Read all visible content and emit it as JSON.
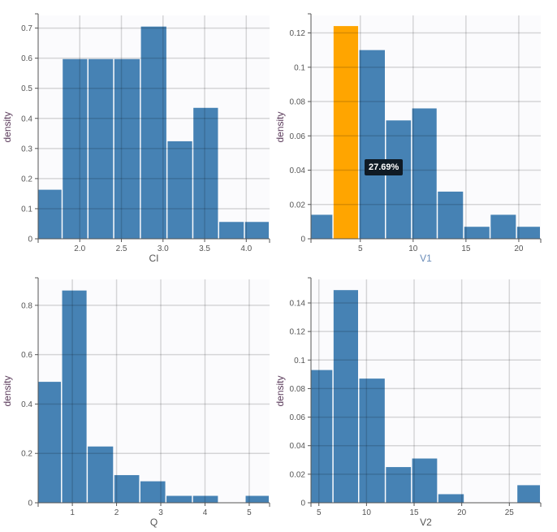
{
  "chart_data": [
    {
      "type": "bar",
      "subtype": "histogram",
      "xlabel": "CI",
      "ylabel": "density",
      "xlim": [
        1.5,
        4.28
      ],
      "ylim": [
        0,
        0.742
      ],
      "xticks": [
        2.0,
        2.5,
        3.0,
        3.5,
        4.0
      ],
      "xtick_labels": [
        "2.0",
        "2.5",
        "3.0",
        "3.5",
        "4.0"
      ],
      "yticks": [
        0,
        0.1,
        0.2,
        0.3,
        0.4,
        0.5,
        0.6,
        0.7
      ],
      "ytick_labels": [
        "0",
        "0.1",
        "0.2",
        "0.3",
        "0.4",
        "0.5",
        "0.6",
        "0.7"
      ],
      "bin_edges": [
        1.5,
        1.79,
        2.1,
        2.41,
        2.73,
        3.05,
        3.36,
        3.67,
        3.98,
        4.28
      ],
      "values": [
        0.163,
        0.597,
        0.597,
        0.597,
        0.705,
        0.324,
        0.435,
        0.056,
        0.056
      ],
      "grid": true
    },
    {
      "type": "bar",
      "subtype": "histogram",
      "xlabel": "V1",
      "ylabel": "density",
      "xlim": [
        0.33,
        22.08
      ],
      "ylim": [
        0,
        0.1302
      ],
      "xticks": [
        5,
        10,
        15,
        20
      ],
      "xtick_labels": [
        "5",
        "10",
        "15",
        "20"
      ],
      "yticks": [
        0,
        0.02,
        0.04,
        0.06,
        0.08,
        0.1,
        0.12
      ],
      "ytick_labels": [
        "0",
        "0.02",
        "0.04",
        "0.06",
        "0.08",
        "0.1",
        "0.12"
      ],
      "bin_edges": [
        0.33,
        2.43,
        4.87,
        7.4,
        9.87,
        12.3,
        14.8,
        17.3,
        19.8,
        22.08
      ],
      "values": [
        0.014,
        0.124,
        0.11,
        0.069,
        0.076,
        0.0275,
        0.007,
        0.014,
        0.007
      ],
      "highlighted_bin": 1,
      "highlight_color": "#ffa500",
      "tooltip": "27.69%",
      "grid": true
    },
    {
      "type": "bar",
      "subtype": "histogram",
      "xlabel": "Q",
      "ylabel": "density",
      "xlim": [
        0.227,
        5.46
      ],
      "ylim": [
        0,
        0.905
      ],
      "xticks": [
        1,
        2,
        3,
        4,
        5
      ],
      "xtick_labels": [
        "1",
        "2",
        "3",
        "4",
        "5"
      ],
      "yticks": [
        0,
        0.2,
        0.4,
        0.6,
        0.8
      ],
      "ytick_labels": [
        "0",
        "0.2",
        "0.4",
        "0.6",
        "0.8"
      ],
      "bin_edges": [
        0.227,
        0.76,
        1.34,
        1.94,
        2.53,
        3.12,
        3.72,
        4.31,
        4.91,
        5.46
      ],
      "values": [
        0.49,
        0.86,
        0.228,
        0.112,
        0.087,
        0.028,
        0.028,
        0,
        0.028
      ],
      "grid": true
    },
    {
      "type": "bar",
      "subtype": "histogram",
      "xlabel": "V2",
      "ylabel": "density",
      "xlim": [
        4.17,
        28.3
      ],
      "ylim": [
        0,
        0.1565
      ],
      "xticks": [
        5,
        10,
        15,
        20,
        25
      ],
      "xtick_labels": [
        "5",
        "10",
        "15",
        "20",
        "25"
      ],
      "yticks": [
        0,
        0.02,
        0.04,
        0.06,
        0.08,
        0.1,
        0.12,
        0.14
      ],
      "ytick_labels": [
        "0",
        "0.02",
        "0.04",
        "0.06",
        "0.08",
        "0.1",
        "0.12",
        "0.14"
      ],
      "bin_edges": [
        4.17,
        6.5,
        9.2,
        12.0,
        14.75,
        17.5,
        20.3,
        23.0,
        25.8,
        28.3
      ],
      "values": [
        0.093,
        0.149,
        0.087,
        0.025,
        0.031,
        0.006,
        0,
        0,
        0.0123
      ],
      "grid": true
    }
  ],
  "colors": {
    "bar": "#4682b4",
    "plot_background": "#fbfbfd",
    "highlight": "#ffa500"
  }
}
